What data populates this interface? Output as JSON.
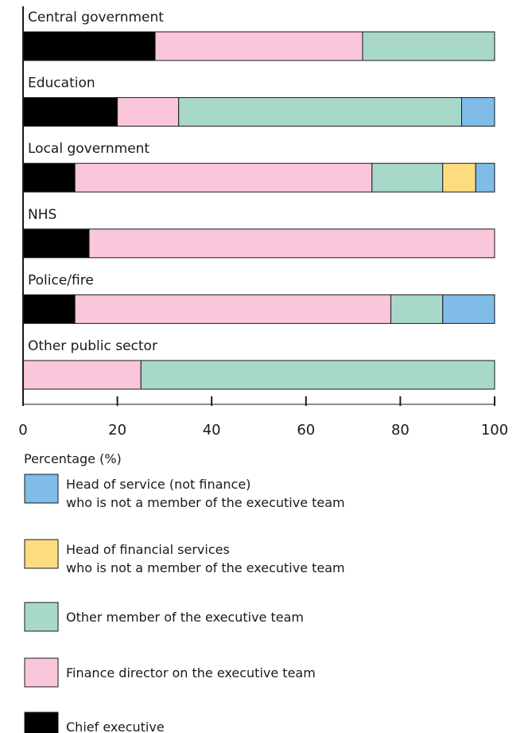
{
  "chart_data": {
    "type": "bar",
    "orientation": "horizontal",
    "stacked": true,
    "categories": [
      "Central government",
      "Education",
      "Local government",
      "NHS",
      "Police/fire",
      "Other public sector"
    ],
    "series": [
      {
        "name": "Chief executive",
        "color": "#000000",
        "values": [
          28,
          20,
          11,
          14,
          11,
          0
        ]
      },
      {
        "name": "Finance director on the executive team",
        "color": "#f9c6dc",
        "values": [
          44,
          13,
          63,
          86,
          67,
          25
        ]
      },
      {
        "name": "Other member of the executive team",
        "color": "#a8d8ca",
        "values": [
          28,
          60,
          15,
          0,
          11,
          75
        ]
      },
      {
        "name": "Head of financial services who is not a member of the executive team",
        "color": "#fddc80",
        "values": [
          0,
          0,
          7,
          0,
          0,
          0
        ]
      },
      {
        "name": "Head of service (not finance) who is not a member of the executive team",
        "color": "#7fbce8",
        "values": [
          0,
          7,
          4,
          0,
          11,
          0
        ]
      }
    ],
    "xlim": [
      0,
      100
    ],
    "xticks": [
      "0",
      "20",
      "40",
      "60",
      "80",
      "100"
    ],
    "xlabel": "Percentage (%)",
    "ylabel": "",
    "title": "",
    "legend": {
      "placement": "bottom",
      "items": [
        {
          "line1": "Head of service (not finance)",
          "line2": "who is not a member of the executive team",
          "color": "#7fbce8"
        },
        {
          "line1": "Head of financial services",
          "line2": "who is not a member of the executive team",
          "color": "#fddc80"
        },
        {
          "line1": "Other member of the executive team",
          "line2": "",
          "color": "#a8d8ca"
        },
        {
          "line1": "Finance director on the executive team",
          "line2": "",
          "color": "#f9c6dc"
        },
        {
          "line1": "Chief executive",
          "line2": "",
          "color": "#000000"
        }
      ]
    },
    "grid": false
  }
}
